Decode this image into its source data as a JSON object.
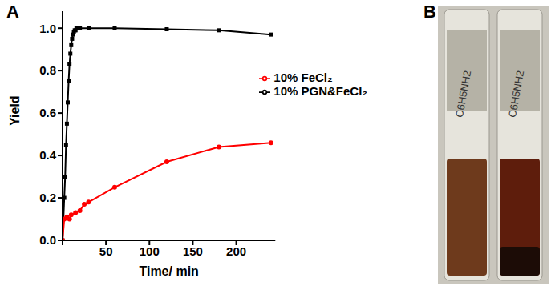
{
  "chart_data": {
    "type": "line",
    "panel_label": "A",
    "x_label": "Time/ min",
    "y_label": "Yield",
    "xlim": [
      0,
      245
    ],
    "xticks": [
      0,
      50,
      100,
      150,
      200
    ],
    "ylim": [
      0,
      1.08
    ],
    "yticks": [
      {
        "value": 0,
        "label": "0.0"
      },
      {
        "value": 0.2,
        "label": "0.2"
      },
      {
        "value": 0.4,
        "label": "0.4"
      },
      {
        "value": 0.6,
        "label": "0.6"
      },
      {
        "value": 0.8,
        "label": "0.8"
      },
      {
        "value": 1.0,
        "label": "1.0"
      }
    ],
    "grid": false,
    "legend": "upper right",
    "series": [
      {
        "name": "10% PGN&FeCl₂",
        "color": "#000000",
        "marker": "square",
        "x": [
          0,
          1,
          2,
          3,
          4,
          5,
          6,
          7,
          8,
          9,
          10,
          11,
          12,
          13,
          14,
          15,
          16,
          18,
          20,
          30,
          60,
          120,
          180,
          240
        ],
        "values": [
          0,
          0.1,
          0.2,
          0.3,
          0.45,
          0.55,
          0.65,
          0.75,
          0.83,
          0.88,
          0.92,
          0.95,
          0.97,
          0.98,
          0.99,
          0.99,
          1.0,
          1.0,
          1.0,
          1.0,
          1.0,
          0.995,
          0.99,
          0.97
        ]
      },
      {
        "name": "10% FeCl₂",
        "color": "#ff0000",
        "marker": "circle",
        "x": [
          0,
          2,
          5,
          8,
          10,
          15,
          20,
          25,
          30,
          60,
          120,
          180,
          240
        ],
        "values": [
          0,
          0.1,
          0.11,
          0.1,
          0.12,
          0.13,
          0.14,
          0.17,
          0.18,
          0.25,
          0.37,
          0.44,
          0.46
        ]
      }
    ]
  },
  "photo": {
    "panel_label": "B",
    "vial_labels": [
      "C6H5NH2",
      "C6H5NH2"
    ]
  }
}
